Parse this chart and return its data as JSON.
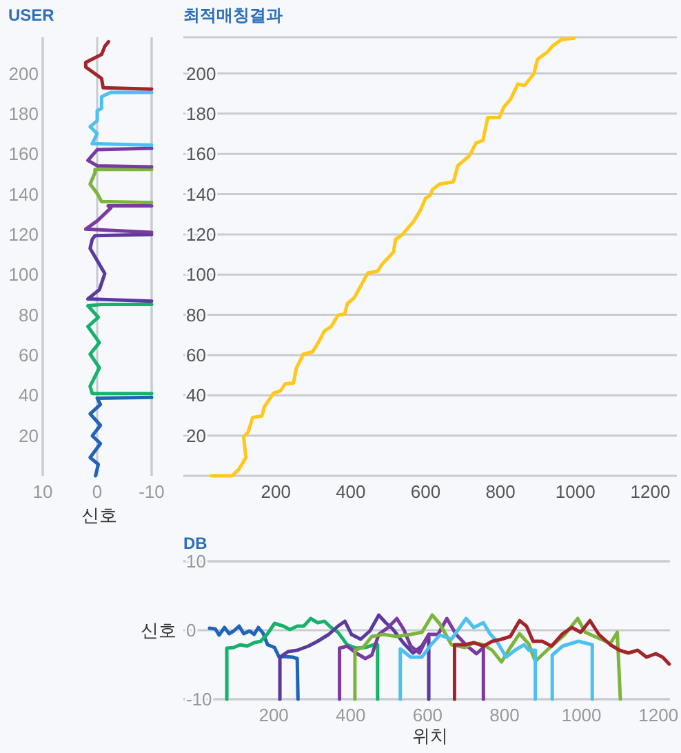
{
  "chart_data": [
    {
      "type": "line",
      "title": "USER",
      "xlabel": "신호",
      "xlim": [
        10,
        -10
      ],
      "xticks": [
        10,
        0,
        -10
      ],
      "ylim": [
        0,
        218
      ],
      "yticks": [
        20,
        40,
        60,
        80,
        100,
        120,
        140,
        160,
        180,
        200
      ],
      "grid": "x",
      "series": [
        {
          "color": "#1f64b8",
          "x": [
            0.3,
            -0.2,
            1.3,
            -0.6,
            0.9,
            -0.6,
            1.3,
            -0.6,
            0,
            -10
          ],
          "values": [
            0,
            5.7,
            9.1,
            16,
            19.9,
            25.1,
            30.8,
            35.4,
            38.6,
            39
          ]
        },
        {
          "color": "#17b26a",
          "x": [
            -10,
            0.9,
            1.3,
            -0.4,
            1.3,
            -0.4,
            1.7,
            -0.2,
            1.7,
            -0.8,
            -10
          ],
          "values": [
            40.9,
            40.9,
            44.5,
            53.7,
            60.5,
            66.2,
            74.2,
            78.8,
            84.5,
            85.2,
            85.2
          ]
        },
        {
          "color": "#5a3a9e",
          "x": [
            -10,
            1.7,
            -0.4,
            -1.4,
            0.3,
            1.3,
            0.9,
            0.4,
            -10
          ],
          "values": [
            86.8,
            87.9,
            92.5,
            100.5,
            108.4,
            113,
            117.6,
            119.4,
            120
          ]
        },
        {
          "color": "#7b3aa0",
          "x": [
            -10,
            2.1,
            0,
            -2.5,
            -2,
            -10
          ],
          "values": [
            121,
            122.6,
            126.7,
            133.1,
            134.2,
            134.2
          ]
        },
        {
          "color": "#7cb53a",
          "x": [
            -10,
            -0.8,
            0,
            1.3,
            0.4,
            0.4,
            -10
          ],
          "values": [
            135.8,
            136.3,
            140.4,
            145,
            150.7,
            152.3,
            152.3
          ]
        },
        {
          "color": "#7b3aa0",
          "x": [
            -10,
            0,
            1.7,
            0,
            -10
          ],
          "values": [
            153.6,
            154.1,
            156.8,
            162.1,
            162.8
          ]
        },
        {
          "color": "#4cc0f0",
          "x": [
            -10,
            0.9,
            0,
            1.3,
            0,
            0,
            -0.8,
            -0.8,
            -2.5,
            -10
          ],
          "values": [
            164.4,
            165.1,
            170.1,
            173.5,
            176.5,
            181.5,
            182.6,
            188.4,
            190.6,
            190.6
          ]
        },
        {
          "color": "#a3242b",
          "x": [
            -10,
            -1.1,
            -0.8,
            2.1,
            2.1,
            -0.8,
            -1.4,
            -2.1
          ],
          "values": [
            192.2,
            192.9,
            197.5,
            203.2,
            205.5,
            209.4,
            213.5,
            215.8
          ]
        }
      ]
    },
    {
      "type": "line",
      "title": "최적매칭결과",
      "xlim": [
        -47,
        1271
      ],
      "xticks": [
        200,
        400,
        600,
        800,
        1000,
        1200
      ],
      "ylim": [
        0,
        218
      ],
      "yticks": [
        20,
        40,
        60,
        80,
        100,
        120,
        140,
        160,
        180,
        200
      ],
      "grid": "y",
      "series": [
        {
          "color": "#ffc81a",
          "x": [
            28,
            83,
            102,
            120,
            114,
            126,
            138,
            163,
            169,
            194,
            212,
            225,
            247,
            255,
            274,
            298,
            317,
            329,
            348,
            366,
            384,
            391,
            409,
            446,
            471,
            483,
            514,
            520,
            538,
            569,
            587,
            600,
            612,
            618,
            637,
            674,
            686,
            717,
            735,
            753,
            766,
            797,
            809,
            827,
            846,
            864,
            889,
            899,
            926,
            938,
            963,
            997
          ],
          "values": [
            0,
            0,
            3.4,
            9.1,
            19.4,
            21.7,
            29,
            29.7,
            34.2,
            41.1,
            42.2,
            45.7,
            46.1,
            53.7,
            60.5,
            61.6,
            67.4,
            71.9,
            74.2,
            79.9,
            80.4,
            85.6,
            88.4,
            100.9,
            101.6,
            105,
            111.2,
            117.6,
            119.9,
            126.7,
            132.4,
            138.1,
            139.3,
            142.2,
            145,
            146.1,
            154.1,
            159.1,
            165.5,
            166.7,
            178.1,
            178.1,
            183.3,
            187.2,
            194.7,
            194,
            199.8,
            207.1,
            210.7,
            213.5,
            216.9,
            217.6
          ]
        }
      ]
    },
    {
      "type": "line",
      "title": "DB",
      "xlabel": "위치",
      "ylabel": "신호",
      "xlim": [
        -35,
        1230
      ],
      "xticks": [
        200,
        400,
        600,
        800,
        1000,
        1200
      ],
      "ylim": [
        -10,
        10
      ],
      "yticks": [
        10,
        0,
        -10
      ],
      "grid": "y",
      "series": [
        {
          "color": "#1f64b8",
          "x": [
            33,
            48,
            58,
            72,
            84,
            96,
            110,
            122,
            137,
            149,
            160,
            172,
            184,
            202,
            214,
            225,
            249,
            261,
            263
          ],
          "values": [
            0.3,
            0.2,
            -0.7,
            0.4,
            -0.5,
            -0.1,
            0.6,
            -0.5,
            -0.1,
            -0.6,
            0.4,
            -0.4,
            -2.1,
            -2.5,
            -3.9,
            -3.8,
            -3.9,
            -4.1,
            -10
          ]
        },
        {
          "color": "#17b26a",
          "x": [
            78,
            78,
            96,
            113,
            131,
            149,
            166,
            184,
            202,
            225,
            242,
            261,
            278,
            296,
            314,
            332,
            349,
            367,
            391,
            414,
            438,
            461,
            470,
            470
          ],
          "values": [
            -10,
            -2.6,
            -2.5,
            -2.1,
            -2.3,
            -1.8,
            -1.6,
            -0.5,
            1.0,
            0.6,
            0.1,
            0.6,
            0.6,
            1.7,
            1.1,
            1.3,
            0.4,
            -0.3,
            -2.1,
            -2.6,
            -2.5,
            -2.1,
            -2.1,
            -10
          ]
        },
        {
          "color": "#5a3a9e",
          "x": [
            216,
            216,
            237,
            261,
            290,
            314,
            343,
            367,
            385,
            402,
            426,
            450,
            473,
            491,
            509,
            538,
            562,
            585,
            603,
            603
          ],
          "values": [
            -10,
            -3.9,
            -3.1,
            -2.9,
            -2.3,
            -1.6,
            -0.6,
            0.6,
            1.3,
            -0.6,
            -1.3,
            -0.1,
            2.2,
            1.1,
            0.2,
            -1.9,
            -3.3,
            -2.3,
            -0.6,
            -10
          ]
        },
        {
          "color": "#7b3aa0",
          "x": [
            371,
            371,
            391,
            414,
            438,
            455,
            473,
            497,
            520,
            538,
            556,
            579,
            603,
            627,
            650,
            674,
            703,
            727,
            745,
            745
          ],
          "values": [
            -10,
            -2.6,
            -2.3,
            -3.3,
            -4.1,
            -3.6,
            -0.6,
            0.4,
            1.7,
            0.1,
            -2.3,
            -3.3,
            -0.6,
            -0.6,
            1.7,
            -0.6,
            -2.3,
            -3.4,
            -2.5,
            -10
          ]
        },
        {
          "color": "#7cb53a",
          "x": [
            411,
            411,
            432,
            455,
            485,
            520,
            556,
            585,
            612,
            632,
            662,
            697,
            720,
            745,
            768,
            792,
            815,
            839,
            863,
            880,
            916,
            957,
            990,
            1010,
            1075,
            1093,
            1101
          ],
          "values": [
            -10,
            -2.9,
            -2.5,
            -0.9,
            -0.6,
            -0.9,
            -0.6,
            -0.3,
            2.2,
            0.9,
            -2.1,
            -2.5,
            -1.8,
            -2.1,
            -2.9,
            -4.6,
            -2.5,
            -0.5,
            -2.0,
            -4.5,
            -2.6,
            -0.6,
            1.7,
            -0.3,
            -1.9,
            -0.3,
            -10
          ]
        },
        {
          "color": "#4cc0f0",
          "x": [
            529,
            529,
            556,
            585,
            609,
            632,
            662,
            686,
            700,
            720,
            745,
            762,
            780,
            804,
            827,
            851,
            863,
            880,
            880
          ],
          "values": [
            -10,
            -2.7,
            -3.9,
            -3.9,
            -2.1,
            -0.7,
            -1.3,
            0.6,
            1.7,
            0.4,
            1.1,
            -0.5,
            -1.6,
            -3.9,
            -2.9,
            -2.1,
            -2.9,
            -2.9,
            -10
          ]
        },
        {
          "color": "#4cc0f0",
          "x": [
            924,
            924,
            951,
            992,
            1028,
            1028
          ],
          "values": [
            -10,
            -3.6,
            -2.3,
            -1.6,
            -2.1,
            -10
          ]
        },
        {
          "color": "#a3242b",
          "x": [
            670,
            670,
            697,
            720,
            745,
            768,
            792,
            815,
            839,
            857,
            874,
            898,
            922,
            951,
            975,
            998,
            1022,
            1045,
            1075,
            1099,
            1122,
            1146,
            1169,
            1193,
            1211,
            1228
          ],
          "values": [
            -10,
            -2.1,
            -2.1,
            -1.8,
            -2.3,
            -1.6,
            -1.3,
            -0.9,
            1.4,
            0.6,
            -1.6,
            -1.6,
            -2.3,
            -0.5,
            0.4,
            -0.3,
            1.4,
            -0.6,
            -2.1,
            -2.9,
            -3.3,
            -2.9,
            -3.9,
            -3.4,
            -3.9,
            -4.9
          ]
        }
      ]
    }
  ]
}
